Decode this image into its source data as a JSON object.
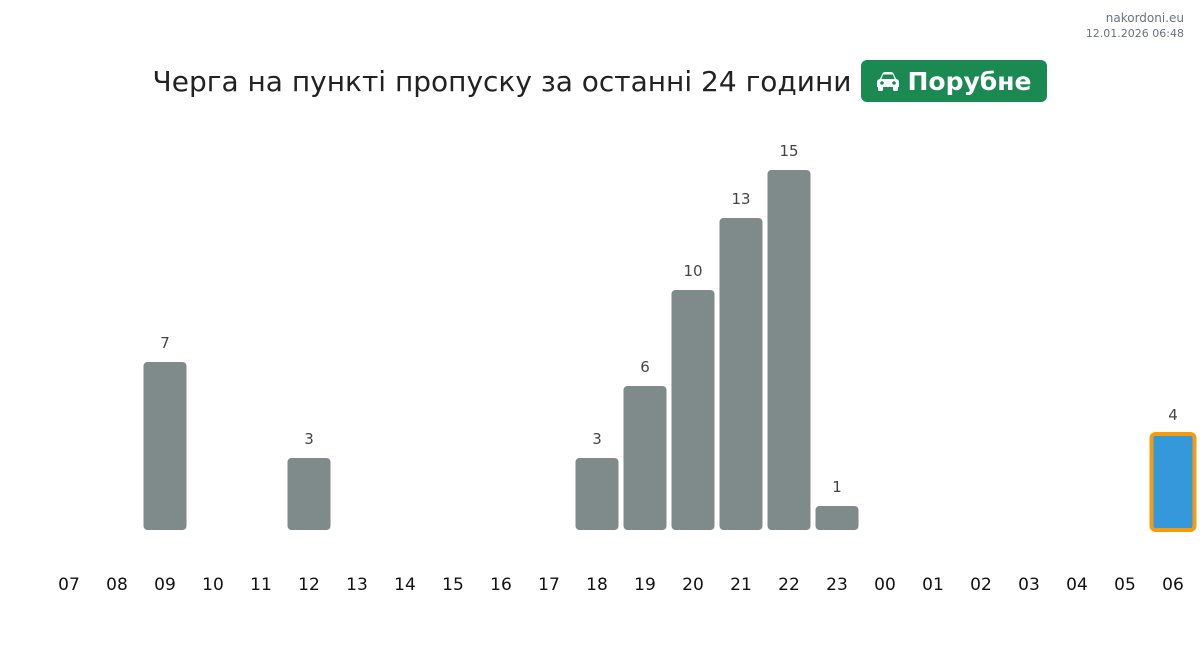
{
  "header": {
    "site": "nakordoni.eu",
    "timestamp": "12.01.2026 06:48",
    "title": "Черга на пункті пропуску за останні 24 години",
    "checkpoint": {
      "label": "Порубне",
      "icon": "car-icon",
      "color": "#1b8a52"
    }
  },
  "colors": {
    "bar": "#7f8b8b",
    "current_bar": "#3498db",
    "current_outline": "#f39c12",
    "value_label": "#444444",
    "tick_label": "#111111"
  },
  "chart_data": {
    "type": "bar",
    "title": "Черга на пункті пропуску за останні 24 години",
    "categories": [
      "07",
      "08",
      "09",
      "10",
      "11",
      "12",
      "13",
      "14",
      "15",
      "16",
      "17",
      "18",
      "19",
      "20",
      "21",
      "22",
      "23",
      "00",
      "01",
      "02",
      "03",
      "04",
      "05",
      "06"
    ],
    "values": [
      0,
      0,
      7,
      0,
      0,
      3,
      0,
      0,
      0,
      0,
      0,
      3,
      6,
      10,
      13,
      15,
      1,
      0,
      0,
      0,
      0,
      0,
      0,
      4
    ],
    "highlight_index": 23,
    "xlabel": "",
    "ylabel": "",
    "ylim": [
      0,
      15
    ],
    "grid": false,
    "legend": "none"
  }
}
